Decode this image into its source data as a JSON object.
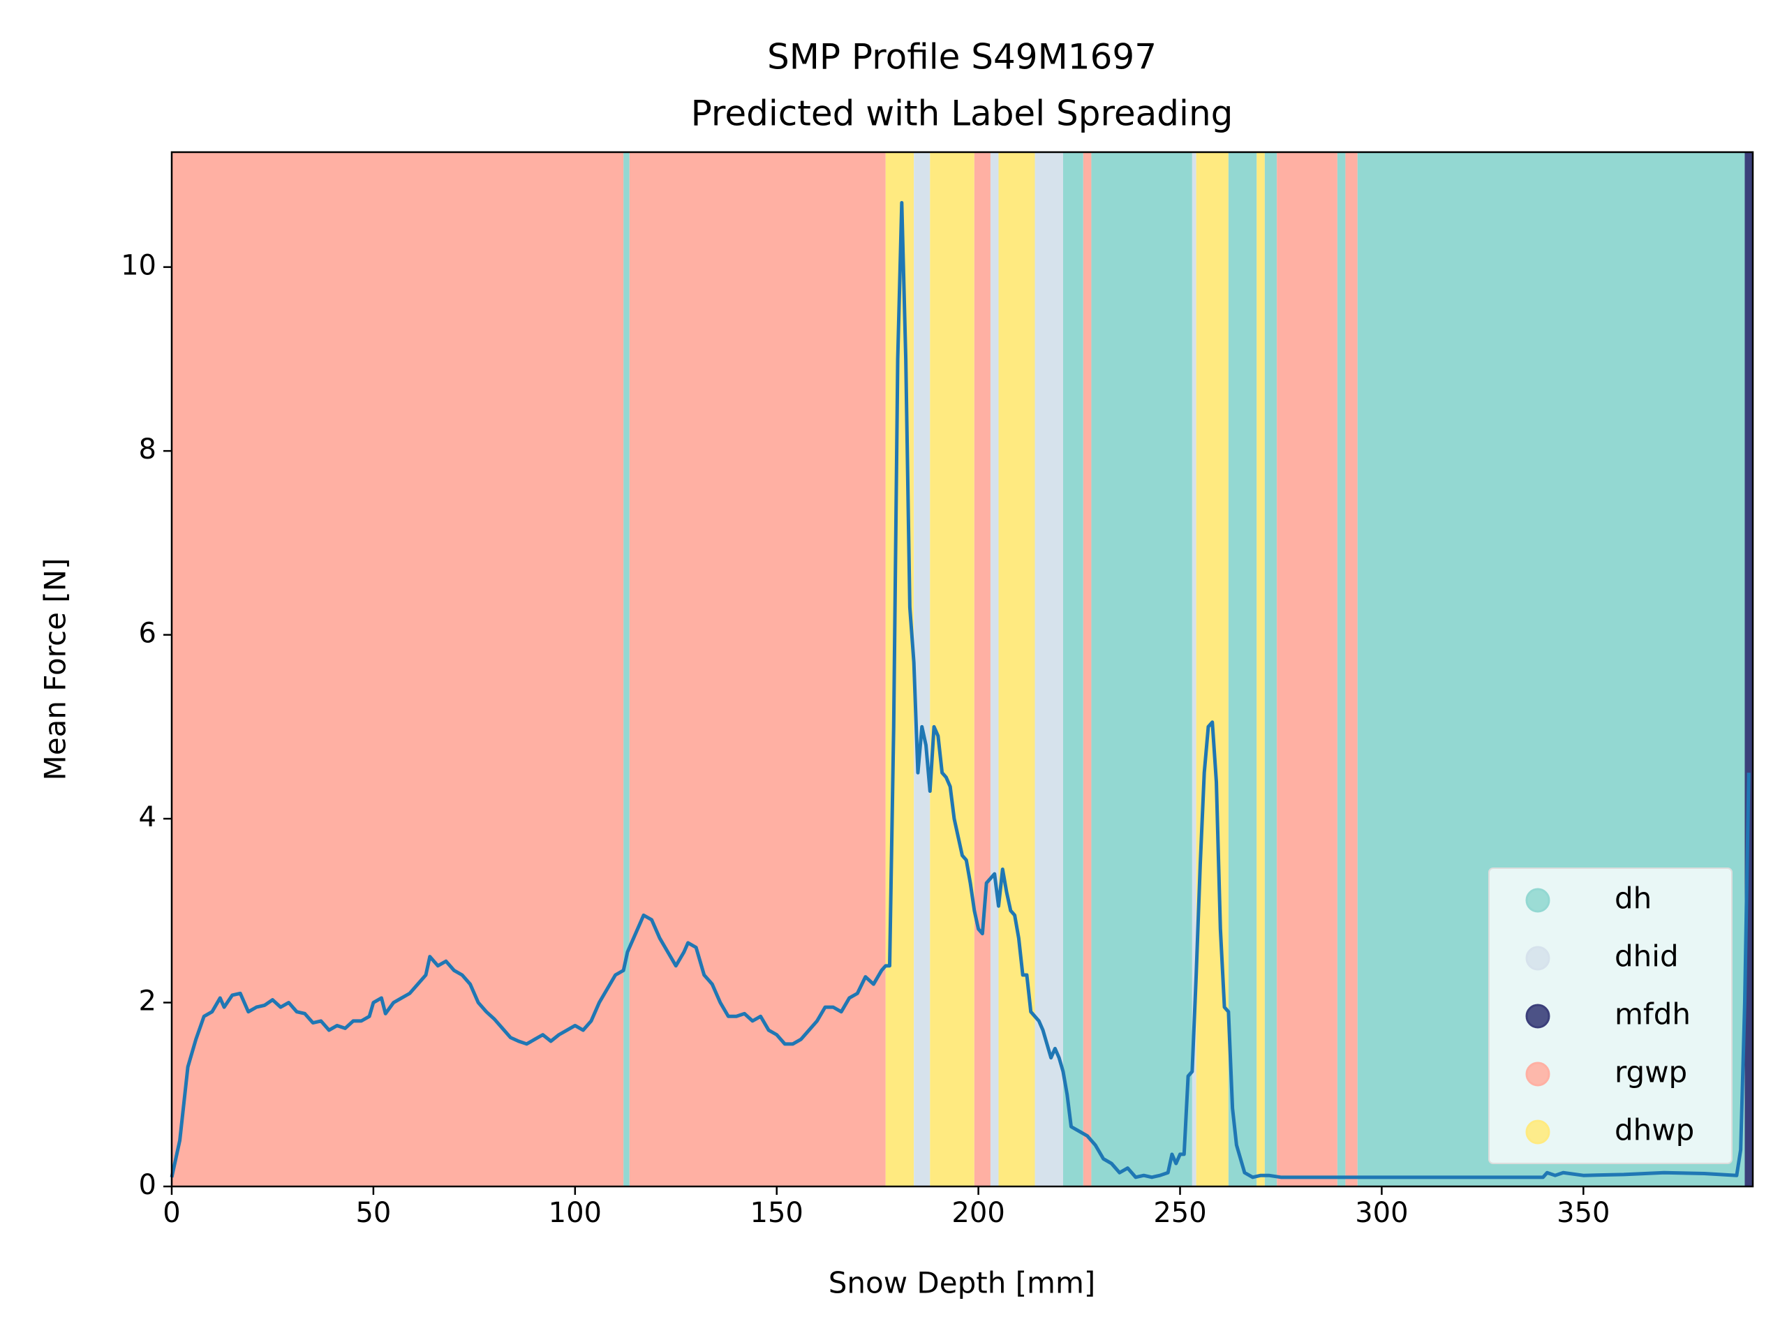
{
  "chart_data": {
    "type": "line",
    "title": "SMP Profile S49M1697",
    "subtitle": "Predicted with Label Spreading",
    "xlabel": "Snow Depth [mm]",
    "ylabel": "Mean Force [N]",
    "xlim": [
      0,
      392
    ],
    "ylim": [
      0,
      11.25
    ],
    "xticks": [
      0,
      50,
      100,
      150,
      200,
      250,
      300,
      350
    ],
    "yticks": [
      0,
      2,
      4,
      6,
      8,
      10
    ],
    "legend_position": "lower right",
    "legend": [
      "dh",
      "dhid",
      "mfdh",
      "rgwp",
      "dhwp"
    ],
    "label_colors": {
      "dh": "#93d8d2",
      "dhid": "#d6e2ec",
      "mfdh": "#3b3f7a",
      "rgwp": "#ffb0a3",
      "dhwp": "#ffea80"
    },
    "bands": [
      {
        "start": 0,
        "end": 112,
        "label": "rgwp"
      },
      {
        "start": 112,
        "end": 113.5,
        "label": "dh"
      },
      {
        "start": 113.5,
        "end": 177,
        "label": "rgwp"
      },
      {
        "start": 177,
        "end": 184,
        "label": "dhwp"
      },
      {
        "start": 184,
        "end": 188,
        "label": "dhid"
      },
      {
        "start": 188,
        "end": 199,
        "label": "dhwp"
      },
      {
        "start": 199,
        "end": 203,
        "label": "rgwp"
      },
      {
        "start": 203,
        "end": 205,
        "label": "dhid"
      },
      {
        "start": 205,
        "end": 214,
        "label": "dhwp"
      },
      {
        "start": 214,
        "end": 221,
        "label": "dhid"
      },
      {
        "start": 221,
        "end": 226,
        "label": "dh"
      },
      {
        "start": 226,
        "end": 228,
        "label": "rgwp"
      },
      {
        "start": 228,
        "end": 253,
        "label": "dh"
      },
      {
        "start": 253,
        "end": 254,
        "label": "dhid"
      },
      {
        "start": 254,
        "end": 262,
        "label": "dhwp"
      },
      {
        "start": 262,
        "end": 269,
        "label": "dh"
      },
      {
        "start": 269,
        "end": 271,
        "label": "dhwp"
      },
      {
        "start": 271,
        "end": 274,
        "label": "dh"
      },
      {
        "start": 274,
        "end": 289,
        "label": "rgwp"
      },
      {
        "start": 289,
        "end": 291,
        "label": "dh"
      },
      {
        "start": 291,
        "end": 294,
        "label": "rgwp"
      },
      {
        "start": 294,
        "end": 390,
        "label": "dh"
      },
      {
        "start": 390,
        "end": 392,
        "label": "mfdh"
      }
    ],
    "series": [
      {
        "name": "Mean Force",
        "color": "#1f77b4",
        "x": [
          0,
          2,
          4,
          6,
          8,
          10,
          12,
          13,
          15,
          17,
          19,
          21,
          23,
          25,
          27,
          29,
          31,
          33,
          35,
          37,
          39,
          41,
          43,
          45,
          47,
          49,
          50,
          52,
          53,
          55,
          57,
          59,
          61,
          63,
          64,
          66,
          68,
          70,
          72,
          74,
          76,
          78,
          80,
          82,
          84,
          86,
          88,
          90,
          92,
          94,
          96,
          98,
          100,
          102,
          104,
          106,
          108,
          110,
          112,
          113,
          115,
          117,
          119,
          121,
          123,
          125,
          127,
          128,
          130,
          132,
          134,
          136,
          138,
          140,
          142,
          144,
          146,
          148,
          150,
          152,
          154,
          156,
          158,
          160,
          162,
          164,
          166,
          168,
          170,
          172,
          174,
          176,
          177,
          178,
          179,
          180,
          181,
          182,
          183,
          184,
          185,
          186,
          187,
          188,
          189,
          190,
          191,
          192,
          193,
          194,
          195,
          196,
          197,
          198,
          199,
          200,
          201,
          202,
          203,
          204,
          205,
          206,
          207,
          208,
          209,
          210,
          211,
          212,
          213,
          214,
          215,
          216,
          217,
          218,
          219,
          220,
          221,
          222,
          223,
          225,
          227,
          229,
          231,
          233,
          235,
          237,
          239,
          241,
          243,
          245,
          247,
          248,
          249,
          250,
          251,
          252,
          253,
          254,
          255,
          256,
          257,
          258,
          259,
          260,
          261,
          262,
          263,
          264,
          266,
          268,
          270,
          272,
          275,
          300,
          340,
          341,
          343,
          345,
          350,
          360,
          370,
          380,
          388,
          389,
          390,
          391
        ],
        "values": [
          0.1,
          0.5,
          1.3,
          1.6,
          1.85,
          1.9,
          2.05,
          1.95,
          2.08,
          2.1,
          1.9,
          1.95,
          1.97,
          2.03,
          1.95,
          2.0,
          1.9,
          1.88,
          1.78,
          1.8,
          1.7,
          1.75,
          1.72,
          1.8,
          1.8,
          1.85,
          2.0,
          2.05,
          1.88,
          2.0,
          2.05,
          2.1,
          2.2,
          2.3,
          2.5,
          2.4,
          2.45,
          2.35,
          2.3,
          2.2,
          2.0,
          1.9,
          1.82,
          1.72,
          1.62,
          1.58,
          1.55,
          1.6,
          1.65,
          1.58,
          1.65,
          1.7,
          1.75,
          1.7,
          1.8,
          2.0,
          2.15,
          2.3,
          2.35,
          2.55,
          2.75,
          2.95,
          2.9,
          2.7,
          2.55,
          2.4,
          2.55,
          2.65,
          2.6,
          2.3,
          2.2,
          2.0,
          1.85,
          1.85,
          1.88,
          1.8,
          1.85,
          1.7,
          1.65,
          1.55,
          1.55,
          1.6,
          1.7,
          1.8,
          1.95,
          1.95,
          1.9,
          2.05,
          2.1,
          2.28,
          2.2,
          2.35,
          2.4,
          2.4,
          5.0,
          9.0,
          10.7,
          9.0,
          6.3,
          5.7,
          4.5,
          5.0,
          4.8,
          4.3,
          5.0,
          4.9,
          4.5,
          4.45,
          4.35,
          4.0,
          3.8,
          3.6,
          3.55,
          3.3,
          3.0,
          2.8,
          2.75,
          3.3,
          3.35,
          3.4,
          3.05,
          3.45,
          3.2,
          3.0,
          2.95,
          2.7,
          2.3,
          2.3,
          1.9,
          1.85,
          1.8,
          1.7,
          1.55,
          1.4,
          1.5,
          1.4,
          1.25,
          1.0,
          0.65,
          0.6,
          0.55,
          0.45,
          0.3,
          0.25,
          0.15,
          0.2,
          0.1,
          0.12,
          0.1,
          0.12,
          0.15,
          0.35,
          0.25,
          0.35,
          0.35,
          1.2,
          1.25,
          2.3,
          3.5,
          4.5,
          5.0,
          5.05,
          4.4,
          2.8,
          1.95,
          1.9,
          0.85,
          0.45,
          0.15,
          0.1,
          0.12,
          0.12,
          0.1,
          0.1,
          0.1,
          0.15,
          0.12,
          0.15,
          0.12,
          0.13,
          0.15,
          0.14,
          0.12,
          0.4,
          2.0,
          4.5
        ]
      }
    ]
  }
}
